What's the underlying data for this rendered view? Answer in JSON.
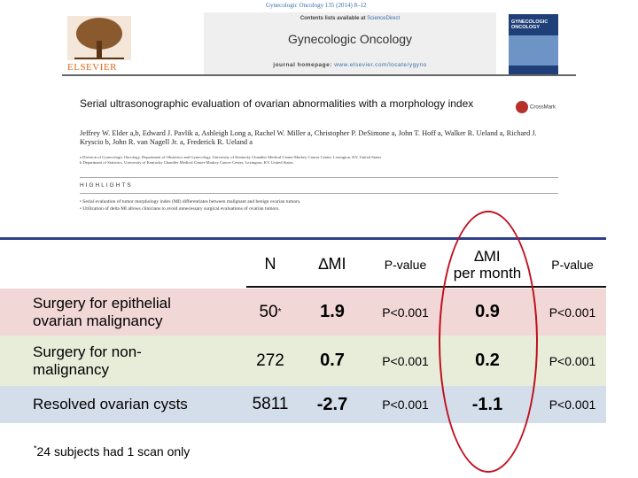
{
  "paper": {
    "citation": "Gynecologic Oncology 135 (2014) 8–12",
    "contents_prefix": "Contents lists available at ",
    "contents_link": "ScienceDirect",
    "journal_name": "Gynecologic Oncology",
    "homepage_prefix": "journal homepage: ",
    "homepage_link": "www.elsevier.com/locate/ygyno",
    "publisher": "ELSEVIER",
    "cover_title": "GYNECOLOGIC ONCOLOGY",
    "crossmark": "CrossMark",
    "title": "Serial ultrasonographic evaluation of ovarian abnormalities with a morphology index",
    "authors": "Jeffrey W. Elder a,b, Edward J. Pavlik a, Ashleigh Long a, Rachel W. Miller a, Christopher P. DeSimone a, John T. Hoff a, Walker R. Ueland a, Richard J. Kryscio b, John R. van Nagell Jr. a, Frederick R. Ueland a",
    "affil_a": "a Division of Gynecologic Oncology, Department of Obstetrics and Gynecology, University of Kentucky Chandler Medical Center-Markey Cancer Center, Lexington, KY, United States",
    "affil_b": "b Department of Statistics, University of Kentucky Chandler Medical Center-Markey Cancer Center, Lexington, KY, United States",
    "highlights_heading": "HIGHLIGHTS",
    "highlight_1": "• Serial evaluation of tumor morphology index (MI) differentiates between malignant and benign ovarian tumors.",
    "highlight_2": "• Utilization of delta MI allows clinicians to avoid unnecessary surgical evaluations of ovarian tumors."
  },
  "table": {
    "headers": {
      "n": "N",
      "delta_mi": "∆MI",
      "p_value_1": "P-value",
      "delta_mi_month_1": "∆MI",
      "delta_mi_month_2": "per month",
      "p_value_2": "P-value"
    },
    "rows": [
      {
        "label_1": "Surgery for epithelial",
        "label_2": "ovarian malignancy",
        "n": "50",
        "n_sup": "*",
        "delta_mi": "1.9",
        "p1": "P<0.001",
        "delta_mi_month": "0.9",
        "p2": "P<0.001"
      },
      {
        "label_1": "Surgery for non-",
        "label_2": "malignancy",
        "n": "272",
        "delta_mi": "0.7",
        "p1": "P<0.001",
        "delta_mi_month": "0.2",
        "p2": "P<0.001"
      },
      {
        "label_1": "Resolved ovarian cysts",
        "n": "5811",
        "delta_mi": "-2.7",
        "p1": "P<0.001",
        "delta_mi_month": "-1.1",
        "p2": "P<0.001"
      }
    ],
    "row_colors": [
      "#f1d7d5",
      "#e8edda",
      "#d4deeb"
    ]
  },
  "footnote": {
    "marker": "*",
    "text": "24 subjects had 1 scan only"
  },
  "colors": {
    "highlight_oval": "#c0101e",
    "table_top_rule": "#2e3f8a"
  }
}
